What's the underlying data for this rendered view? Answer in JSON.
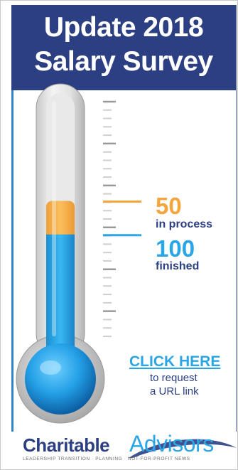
{
  "header": {
    "title_line1": "Update 2018",
    "title_line2": "Salary Survey"
  },
  "progress": {
    "in_process": {
      "value": "50",
      "label": "in process",
      "level_fraction": 0.58,
      "color": "#F5A53D"
    },
    "finished": {
      "value": "100",
      "label": "finished",
      "level_fraction": 0.44,
      "color": "#2AA6E6"
    }
  },
  "cta": {
    "link": "CLICK HERE",
    "line1": "to request",
    "line2": "a URL link"
  },
  "logo": {
    "word1": "Charitable",
    "word2": "Advisors",
    "tagline": "LEADERSHIP TRANSITION · PLANNING · NOT-FOR-PROFIT NEWS"
  },
  "colors": {
    "navy": "#2B3F82",
    "blue": "#2AA6E6",
    "orange": "#F5A53D"
  }
}
